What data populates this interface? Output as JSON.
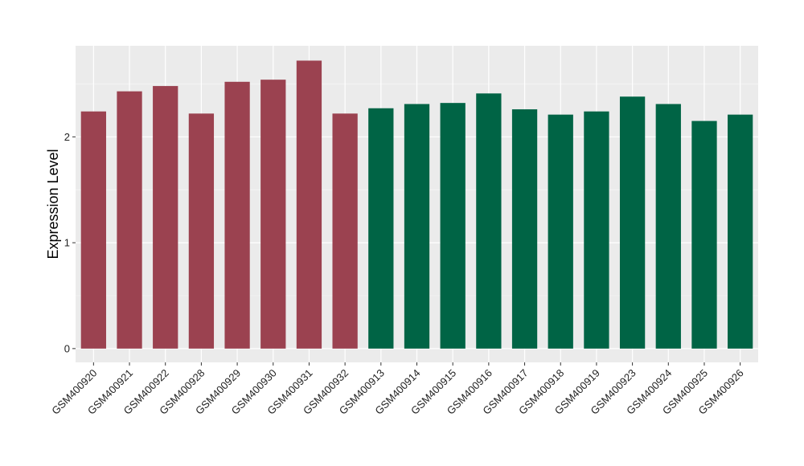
{
  "chart_data": {
    "type": "bar",
    "title": "",
    "xlabel": "",
    "ylabel": "Expression Level",
    "ylim": [
      -0.13,
      2.86
    ],
    "yticks": [
      0,
      1,
      2
    ],
    "grid": true,
    "legend": "none",
    "categories": [
      "GSM400920",
      "GSM400921",
      "GSM400922",
      "GSM400928",
      "GSM400929",
      "GSM400930",
      "GSM400931",
      "GSM400932",
      "GSM400913",
      "GSM400914",
      "GSM400915",
      "GSM400916",
      "GSM400917",
      "GSM400918",
      "GSM400919",
      "GSM400923",
      "GSM400924",
      "GSM400925",
      "GSM400926"
    ],
    "values": [
      2.24,
      2.43,
      2.48,
      2.22,
      2.52,
      2.54,
      2.72,
      2.22,
      2.27,
      2.31,
      2.32,
      2.41,
      2.26,
      2.21,
      2.24,
      2.38,
      2.31,
      2.15,
      2.21
    ],
    "groups": [
      "A",
      "A",
      "A",
      "A",
      "A",
      "A",
      "A",
      "A",
      "B",
      "B",
      "B",
      "B",
      "B",
      "B",
      "B",
      "B",
      "B",
      "B",
      "B"
    ],
    "colors": {
      "A": "#9b4250",
      "B": "#006445",
      "panel": "#ebebeb",
      "grid_major": "#ffffff",
      "grid_minor": "#f5f5f5"
    }
  }
}
